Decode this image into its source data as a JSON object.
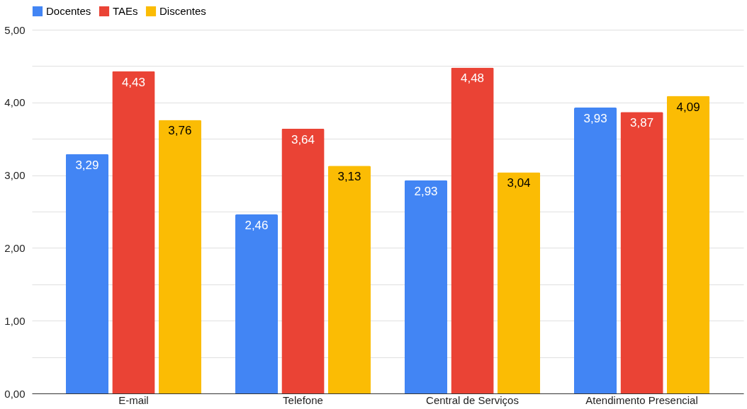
{
  "chart_data": {
    "type": "bar",
    "categories": [
      "E-mail",
      "Telefone",
      "Central de Serviços",
      "Atendimento Presencial"
    ],
    "series": [
      {
        "name": "Docentes",
        "color": "#4285f4",
        "values": [
          3.29,
          2.46,
          2.93,
          3.93
        ],
        "value_labels": [
          "3,29",
          "2,46",
          "2,93",
          "3,93"
        ]
      },
      {
        "name": "TAEs",
        "color": "#ea4335",
        "values": [
          4.43,
          3.64,
          4.48,
          3.87
        ],
        "value_labels": [
          "4,43",
          "3,64",
          "4,48",
          "3,87"
        ]
      },
      {
        "name": "Discentes",
        "color": "#fbbc04",
        "values": [
          3.76,
          3.13,
          3.04,
          4.09
        ],
        "value_labels": [
          "3,76",
          "3,13",
          "3,04",
          "4,09"
        ]
      }
    ],
    "ylim": [
      0,
      5
    ],
    "yticks": [
      {
        "value": 0,
        "label": "0,00"
      },
      {
        "value": 0.5,
        "label": null
      },
      {
        "value": 1,
        "label": "1,00"
      },
      {
        "value": 1.5,
        "label": null
      },
      {
        "value": 2,
        "label": "2,00"
      },
      {
        "value": 2.5,
        "label": null
      },
      {
        "value": 3,
        "label": "3,00"
      },
      {
        "value": 3.5,
        "label": null
      },
      {
        "value": 4,
        "label": "4,00"
      },
      {
        "value": 4.5,
        "label": null
      },
      {
        "value": 5,
        "label": "5,00"
      }
    ],
    "grid": true,
    "legend": "top"
  }
}
